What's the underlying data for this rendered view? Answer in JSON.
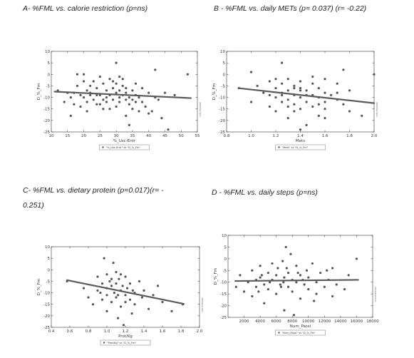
{
  "captions": {
    "a": "A- %FML vs. calorie restriction (p=ns)",
    "b": "B - %FML vs. daily METs  (p= 0.037) (r= -0.22)",
    "c_line1": "C-  %FML  vs.  dietary  protein  (p=0.017)(r=  -",
    "c_line2": "0.251)",
    "d": "D - %FML vs. daily steps (p=ns)"
  },
  "side_note": "corr.malouni",
  "chart_data": [
    {
      "id": "A",
      "type": "scatter",
      "xlabel": "%_Usc-Entr",
      "ylabel": "D_%_Fm",
      "legend": "\"%_Usc-Entr\" vs \"D_%_Fm\"",
      "xlim": [
        10,
        55
      ],
      "ylim": [
        -25,
        10
      ],
      "xticks": [
        10,
        15,
        20,
        25,
        30,
        35,
        40,
        45,
        50,
        55
      ],
      "yticks": [
        -25,
        -20,
        -15,
        -10,
        -5,
        0,
        5,
        10
      ],
      "grid": false,
      "legend_position": "bottom-center",
      "marker_color": "#555555",
      "line_color": "#5a5a5a",
      "fit": {
        "x": [
          11,
          53
        ],
        "y": [
          -7.5,
          -10.3
        ]
      },
      "points": [
        [
          12,
          -7
        ],
        [
          14,
          -12
        ],
        [
          16,
          -10
        ],
        [
          16,
          -18
        ],
        [
          17,
          -13
        ],
        [
          17,
          -8
        ],
        [
          18,
          -5
        ],
        [
          18,
          0
        ],
        [
          19,
          -9
        ],
        [
          19,
          -14
        ],
        [
          20,
          -3
        ],
        [
          20,
          -10
        ],
        [
          20,
          0
        ],
        [
          21,
          -7
        ],
        [
          21,
          -12
        ],
        [
          21,
          -16
        ],
        [
          22,
          -5
        ],
        [
          22,
          -8
        ],
        [
          23,
          -11
        ],
        [
          23,
          -3
        ],
        [
          24,
          -13
        ],
        [
          24,
          -6
        ],
        [
          25,
          -9
        ],
        [
          25,
          -1
        ],
        [
          26,
          -4
        ],
        [
          26,
          -15
        ],
        [
          27,
          -10
        ],
        [
          27,
          -7
        ],
        [
          27,
          -12
        ],
        [
          28,
          -2
        ],
        [
          28,
          -9
        ],
        [
          29,
          -6
        ],
        [
          29,
          -11
        ],
        [
          30,
          -4
        ],
        [
          30,
          -8
        ],
        [
          30,
          -14
        ],
        [
          31,
          -10
        ],
        [
          31,
          -7
        ],
        [
          31,
          -12
        ],
        [
          32,
          -5
        ],
        [
          32,
          -9
        ],
        [
          32,
          -2
        ],
        [
          33,
          -11
        ],
        [
          33,
          -8
        ],
        [
          33,
          -6
        ],
        [
          34,
          -13
        ],
        [
          34,
          -10
        ],
        [
          34,
          -22
        ],
        [
          35,
          -7
        ],
        [
          35,
          -15
        ],
        [
          36,
          -9
        ],
        [
          36,
          -12
        ],
        [
          37,
          -10
        ],
        [
          38,
          -6
        ],
        [
          39,
          -14
        ],
        [
          40,
          -8
        ],
        [
          40,
          -17
        ],
        [
          41,
          -16
        ],
        [
          42,
          2
        ],
        [
          42,
          -10
        ],
        [
          43,
          -11
        ],
        [
          44,
          -19
        ],
        [
          45,
          -8
        ],
        [
          46,
          -24
        ],
        [
          48,
          -9
        ],
        [
          52,
          0
        ],
        [
          30,
          5
        ],
        [
          25,
          -13
        ],
        [
          22,
          -9
        ],
        [
          36,
          -4
        ],
        [
          15,
          -8
        ],
        [
          28,
          -15
        ],
        [
          33,
          -18
        ],
        [
          38,
          -12
        ],
        [
          26,
          -11
        ],
        [
          31,
          -1
        ],
        [
          35,
          -11
        ],
        [
          29,
          -3
        ],
        [
          24,
          -9
        ],
        [
          37,
          -16
        ]
      ]
    },
    {
      "id": "B",
      "type": "scatter",
      "xlabel": "Mets",
      "ylabel": "D_%_Fm",
      "legend": "\"Mets\" vs \"D_%_Fm\"",
      "xlim": [
        0.8,
        2.0
      ],
      "ylim": [
        -25,
        10
      ],
      "xticks": [
        0.8,
        1.0,
        1.2,
        1.4,
        1.6,
        1.8,
        2.0
      ],
      "yticks": [
        -25,
        -20,
        -15,
        -10,
        -5,
        0,
        5,
        10
      ],
      "grid": false,
      "legend_position": "bottom-center",
      "marker_color": "#555555",
      "line_color": "#5a5a5a",
      "fit": {
        "x": [
          0.9,
          2.0
        ],
        "y": [
          -6,
          -12.5
        ]
      },
      "points": [
        [
          0.9,
          -6
        ],
        [
          1.0,
          1
        ],
        [
          1.0,
          -12
        ],
        [
          1.05,
          -5
        ],
        [
          1.1,
          -8
        ],
        [
          1.15,
          -3
        ],
        [
          1.15,
          -14
        ],
        [
          1.2,
          -6
        ],
        [
          1.2,
          -10
        ],
        [
          1.2,
          -16
        ],
        [
          1.25,
          -4
        ],
        [
          1.25,
          -8
        ],
        [
          1.25,
          -12
        ],
        [
          1.25,
          5
        ],
        [
          1.3,
          -2
        ],
        [
          1.3,
          -7
        ],
        [
          1.3,
          -11
        ],
        [
          1.3,
          -19
        ],
        [
          1.35,
          -5
        ],
        [
          1.35,
          -9
        ],
        [
          1.35,
          -13
        ],
        [
          1.4,
          -3
        ],
        [
          1.4,
          -6
        ],
        [
          1.4,
          -10
        ],
        [
          1.4,
          -15
        ],
        [
          1.4,
          -24
        ],
        [
          1.45,
          -7
        ],
        [
          1.45,
          -12
        ],
        [
          1.45,
          -22
        ],
        [
          1.5,
          -4
        ],
        [
          1.5,
          -9
        ],
        [
          1.5,
          -14
        ],
        [
          1.55,
          -6
        ],
        [
          1.55,
          -10
        ],
        [
          1.55,
          -18
        ],
        [
          1.6,
          -2
        ],
        [
          1.6,
          -8
        ],
        [
          1.6,
          -12
        ],
        [
          1.6,
          -15
        ],
        [
          1.65,
          -9
        ],
        [
          1.7,
          -11
        ],
        [
          1.7,
          -4
        ],
        [
          1.75,
          2
        ],
        [
          1.75,
          -13
        ],
        [
          1.8,
          -7
        ],
        [
          1.8,
          -16
        ],
        [
          1.9,
          -18
        ],
        [
          2.0,
          0
        ],
        [
          1.35,
          -6
        ],
        [
          1.45,
          -9
        ],
        [
          1.5,
          -1
        ],
        [
          1.25,
          -9
        ],
        [
          1.3,
          -14
        ],
        [
          1.55,
          -13
        ],
        [
          1.4,
          -7
        ],
        [
          1.6,
          -19
        ],
        [
          1.2,
          -2
        ],
        [
          1.15,
          -9
        ],
        [
          1.7,
          -8
        ],
        [
          1.35,
          -16
        ]
      ]
    },
    {
      "id": "C",
      "type": "scatter",
      "xlabel": "Prot/Kg",
      "ylabel": "D_%_Fm",
      "legend": "\"Prot/Kg\" vs \"D_%_Fm\"",
      "xlim": [
        0.4,
        2.0
      ],
      "ylim": [
        -25,
        10
      ],
      "xticks": [
        0.4,
        0.6,
        0.8,
        1.0,
        1.2,
        1.4,
        1.6,
        1.8,
        2.0
      ],
      "yticks": [
        -25,
        -20,
        -15,
        -10,
        -5,
        0,
        5,
        10
      ],
      "grid": false,
      "legend_position": "bottom-center",
      "marker_color": "#555555",
      "line_color": "#5a5a5a",
      "fit": {
        "x": [
          0.57,
          1.83
        ],
        "y": [
          -4.5,
          -14.8
        ]
      },
      "points": [
        [
          0.57,
          -5
        ],
        [
          0.75,
          -8
        ],
        [
          0.8,
          -12
        ],
        [
          0.85,
          -15
        ],
        [
          0.9,
          -3
        ],
        [
          0.9,
          -9
        ],
        [
          0.95,
          -6
        ],
        [
          0.95,
          -13
        ],
        [
          0.97,
          5
        ],
        [
          1.0,
          -2
        ],
        [
          1.0,
          -8
        ],
        [
          1.0,
          -11
        ],
        [
          1.0,
          -18
        ],
        [
          1.03,
          -5
        ],
        [
          1.05,
          -7
        ],
        [
          1.05,
          -14
        ],
        [
          1.07,
          3
        ],
        [
          1.08,
          -10
        ],
        [
          1.1,
          -1
        ],
        [
          1.1,
          -6
        ],
        [
          1.1,
          -12
        ],
        [
          1.12,
          -21
        ],
        [
          1.13,
          -4
        ],
        [
          1.15,
          -9
        ],
        [
          1.15,
          -16
        ],
        [
          1.17,
          -7
        ],
        [
          1.18,
          -24
        ],
        [
          1.2,
          -3
        ],
        [
          1.2,
          -11
        ],
        [
          1.22,
          -8
        ],
        [
          1.25,
          -13
        ],
        [
          1.25,
          -6
        ],
        [
          1.27,
          -19
        ],
        [
          1.3,
          -10
        ],
        [
          1.3,
          -15
        ],
        [
          1.35,
          -5
        ],
        [
          1.38,
          -12
        ],
        [
          1.4,
          -9
        ],
        [
          1.45,
          -17
        ],
        [
          1.5,
          -11
        ],
        [
          1.55,
          -7
        ],
        [
          1.6,
          -14
        ],
        [
          1.7,
          -18
        ],
        [
          1.82,
          -15
        ],
        [
          1.05,
          -4
        ],
        [
          1.15,
          -2
        ],
        [
          1.2,
          -14
        ],
        [
          0.93,
          -10
        ],
        [
          1.28,
          -9
        ],
        [
          1.12,
          -11
        ]
      ]
    },
    {
      "id": "D",
      "type": "scatter",
      "xlabel": "Num_Passi",
      "ylabel": "D_%_Fm",
      "legend": "\"Num_Passi\" vs \"D_%_Fm\"",
      "xlim": [
        0,
        18000
      ],
      "ylim": [
        -25,
        10
      ],
      "xticks": [
        2000,
        4000,
        6000,
        8000,
        10000,
        12000,
        14000,
        16000,
        18000
      ],
      "yticks": [
        -25,
        -20,
        -15,
        -10,
        -5,
        0,
        5,
        10
      ],
      "grid": false,
      "legend_position": "bottom-center",
      "marker_color": "#555555",
      "line_color": "#5a5a5a",
      "fit": {
        "x": [
          900,
          16200
        ],
        "y": [
          -9.5,
          -9
        ]
      },
      "points": [
        [
          1000,
          -12
        ],
        [
          1500,
          -7
        ],
        [
          2000,
          -14
        ],
        [
          2500,
          -10
        ],
        [
          3000,
          -5
        ],
        [
          3000,
          -16
        ],
        [
          3500,
          -9
        ],
        [
          3500,
          -12
        ],
        [
          4000,
          -3
        ],
        [
          4000,
          -8
        ],
        [
          4500,
          -11
        ],
        [
          4500,
          -19
        ],
        [
          5000,
          -6
        ],
        [
          5000,
          -13
        ],
        [
          5500,
          -2
        ],
        [
          5500,
          -9
        ],
        [
          6000,
          -7
        ],
        [
          6000,
          -15
        ],
        [
          6200,
          -4
        ],
        [
          6500,
          -11
        ],
        [
          6800,
          -1
        ],
        [
          7000,
          -8
        ],
        [
          7000,
          -22
        ],
        [
          7200,
          5
        ],
        [
          7500,
          -6
        ],
        [
          7500,
          -12
        ],
        [
          7800,
          2
        ],
        [
          8000,
          -9
        ],
        [
          8000,
          -14
        ],
        [
          8200,
          -24
        ],
        [
          8500,
          -3
        ],
        [
          8500,
          -10
        ],
        [
          9000,
          -7
        ],
        [
          9000,
          -17
        ],
        [
          9500,
          -11
        ],
        [
          9800,
          -5
        ],
        [
          10000,
          -13
        ],
        [
          10000,
          -8
        ],
        [
          10500,
          -2
        ],
        [
          11000,
          -10
        ],
        [
          11000,
          -15
        ],
        [
          11500,
          -6
        ],
        [
          12000,
          -12
        ],
        [
          12500,
          -9
        ],
        [
          13000,
          -4
        ],
        [
          13000,
          -16
        ],
        [
          13500,
          -11
        ],
        [
          14500,
          -13
        ],
        [
          15000,
          -7
        ],
        [
          16000,
          0
        ],
        [
          5200,
          -10
        ],
        [
          6600,
          -12
        ],
        [
          8700,
          -6
        ],
        [
          9300,
          -9
        ],
        [
          7300,
          -4
        ],
        [
          4200,
          -7
        ],
        [
          10700,
          -18
        ],
        [
          12300,
          -5
        ],
        [
          3800,
          -14
        ],
        [
          6900,
          -10
        ]
      ]
    }
  ]
}
